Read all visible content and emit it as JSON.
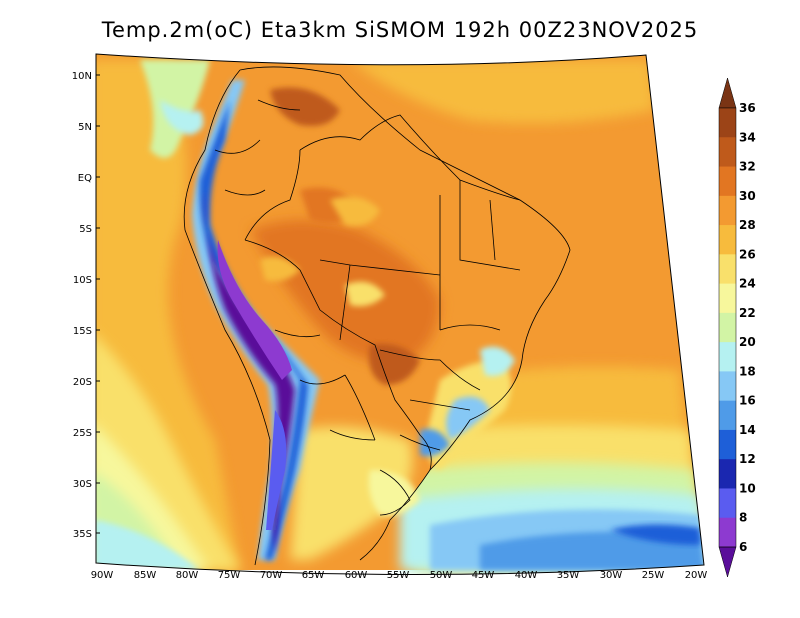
{
  "title": "Temp.2m(oC) Eta3km SiSMOM 192h 00Z23NOV2025",
  "lat_labels": [
    "10N",
    "5N",
    "EQ",
    "5S",
    "10S",
    "15S",
    "20S",
    "25S",
    "30S",
    "35S"
  ],
  "lon_labels": [
    "90W",
    "85W",
    "80W",
    "75W",
    "70W",
    "65W",
    "60W",
    "55W",
    "50W",
    "45W",
    "40W",
    "35W",
    "30W",
    "25W",
    "20W"
  ],
  "colorbar": {
    "labels": [
      "36",
      "34",
      "32",
      "30",
      "28",
      "26",
      "24",
      "22",
      "20",
      "18",
      "16",
      "14",
      "12",
      "10",
      "8",
      "6"
    ],
    "colors": [
      "#7a3414",
      "#9c4417",
      "#bf5a1b",
      "#e27622",
      "#f39a31",
      "#f7bb3d",
      "#f9e06b",
      "#f7f79c",
      "#d2f4a5",
      "#b5f1f1",
      "#86c8f5",
      "#4f9be8",
      "#1e5fd8",
      "#1a27b0",
      "#5a5cf0",
      "#8d3ad0",
      "#5a0e9a"
    ]
  }
}
